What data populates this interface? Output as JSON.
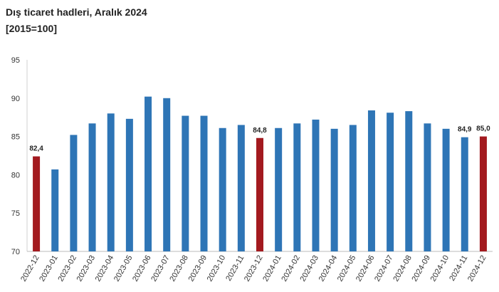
{
  "chart_data": {
    "type": "bar",
    "title": "Dış ticaret hadleri, Aralık 2024",
    "subtitle": "[2015=100]",
    "categories": [
      "2022-12",
      "2023-01",
      "2023-02",
      "2023-03",
      "2023-04",
      "2023-05",
      "2023-06",
      "2023-07",
      "2023-08",
      "2023-09",
      "2023-10",
      "2023-11",
      "2023-12",
      "2024-01",
      "2024-02",
      "2024-03",
      "2024-04",
      "2024-05",
      "2024-06",
      "2024-07",
      "2024-08",
      "2024-09",
      "2024-10",
      "2024-11",
      "2024-12"
    ],
    "values": [
      82.4,
      80.7,
      85.2,
      86.7,
      88.0,
      87.3,
      90.2,
      90.0,
      87.7,
      87.7,
      86.1,
      86.5,
      84.8,
      86.1,
      86.7,
      87.2,
      86.0,
      86.5,
      88.4,
      88.1,
      88.3,
      86.7,
      86.0,
      84.9,
      85.0
    ],
    "value_labels": [
      "82,4",
      null,
      null,
      null,
      null,
      null,
      null,
      null,
      null,
      null,
      null,
      null,
      "84,8",
      null,
      null,
      null,
      null,
      null,
      null,
      null,
      null,
      null,
      null,
      "84,9",
      "85,0"
    ],
    "colors": [
      "#a31a1f",
      "#2e75b6",
      "#2e75b6",
      "#2e75b6",
      "#2e75b6",
      "#2e75b6",
      "#2e75b6",
      "#2e75b6",
      "#2e75b6",
      "#2e75b6",
      "#2e75b6",
      "#2e75b6",
      "#a31a1f",
      "#2e75b6",
      "#2e75b6",
      "#2e75b6",
      "#2e75b6",
      "#2e75b6",
      "#2e75b6",
      "#2e75b6",
      "#2e75b6",
      "#2e75b6",
      "#2e75b6",
      "#2e75b6",
      "#a31a1f"
    ],
    "ylim": [
      70,
      95
    ],
    "yticks": [
      70,
      75,
      80,
      85,
      90,
      95
    ],
    "grid": false
  }
}
